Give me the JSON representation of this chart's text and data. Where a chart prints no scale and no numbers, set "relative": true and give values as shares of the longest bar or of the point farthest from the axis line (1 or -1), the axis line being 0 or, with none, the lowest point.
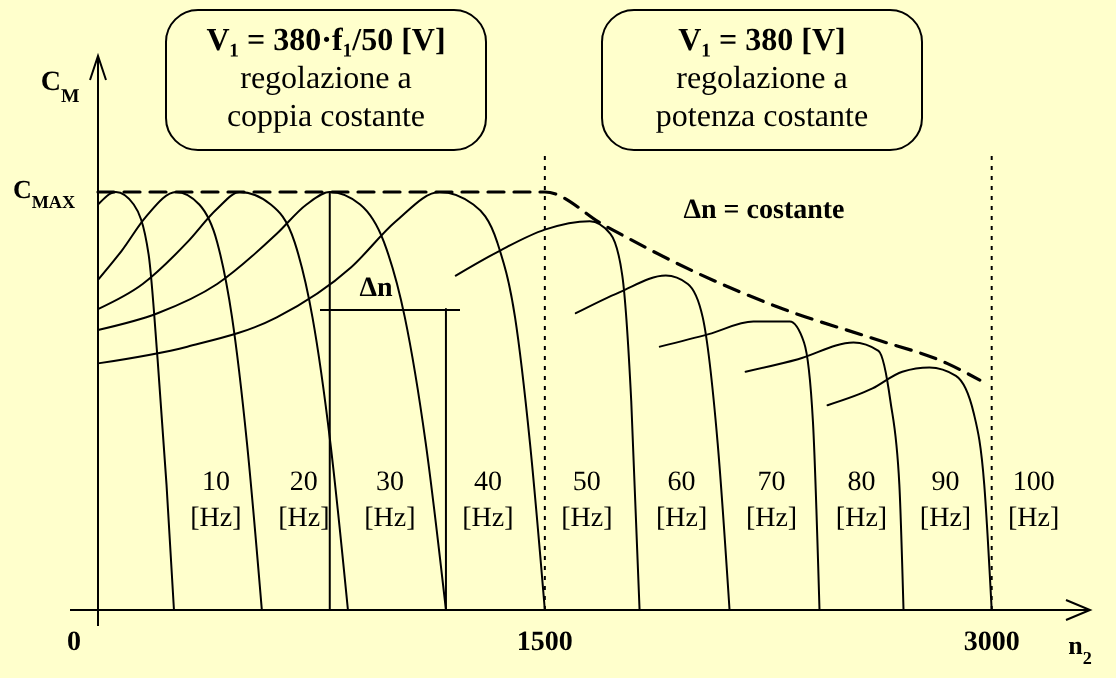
{
  "chart_data": {
    "type": "line",
    "relative": true,
    "xlabel": "n$_{2}$",
    "ylabel": "C$_{M}$",
    "xlim": [
      0,
      3330
    ],
    "xticks": [
      0,
      1500,
      3000
    ],
    "series": [
      {
        "name": "10 [Hz]",
        "color": "#000000",
        "x": [
          0,
          60,
          120,
          170,
          200,
          230,
          255
        ],
        "values": [
          0.97,
          1,
          0.97,
          0.85,
          0.6,
          0.3,
          0
        ]
      },
      {
        "name": "20 [Hz]",
        "color": "#000000",
        "x": [
          0,
          80,
          160,
          262,
          340,
          400,
          450,
          500,
          550
        ],
        "values": [
          0.79,
          0.86,
          0.94,
          1,
          0.97,
          0.88,
          0.7,
          0.4,
          0
        ]
      },
      {
        "name": "30 [Hz]",
        "color": "#000000",
        "x": [
          0,
          150,
          300,
          400,
          476,
          580,
          660,
          720,
          780,
          839
        ],
        "values": [
          0.72,
          0.78,
          0.88,
          0.96,
          1,
          0.97,
          0.88,
          0.7,
          0.4,
          0
        ]
      },
      {
        "name": "40 [Hz]",
        "color": "#000000",
        "x": [
          0,
          200,
          400,
          600,
          700,
          778,
          880,
          960,
          1030,
          1100,
          1168
        ],
        "values": [
          0.67,
          0.71,
          0.78,
          0.9,
          0.97,
          1,
          0.97,
          0.88,
          0.7,
          0.4,
          0
        ]
      },
      {
        "name": "50 [Hz]",
        "color": "#000000",
        "x": [
          0,
          300,
          600,
          850,
          1000,
          1147,
          1260,
          1340,
          1400,
          1450,
          1500
        ],
        "values": [
          0.59,
          0.63,
          0.7,
          0.82,
          0.93,
          1,
          0.97,
          0.88,
          0.7,
          0.4,
          0
        ]
      },
      {
        "name": "60 [Hz]",
        "color": "#000000",
        "x": [
          1201,
          1350,
          1500,
          1651,
          1720,
          1760,
          1790,
          1818
        ],
        "values": [
          0.8,
          0.86,
          0.91,
          0.93,
          0.9,
          0.8,
          0.5,
          0
        ]
      },
      {
        "name": "70 [Hz]",
        "color": "#000000",
        "x": [
          1604,
          1750,
          1906,
          1980,
          2030,
          2080,
          2120
        ],
        "values": [
          0.71,
          0.76,
          0.8,
          0.78,
          0.7,
          0.4,
          0
        ]
      },
      {
        "name": "80 [Hz]",
        "color": "#000000",
        "x": [
          1886,
          2050,
          2200,
          2322,
          2370,
          2400,
          2422
        ],
        "values": [
          0.63,
          0.66,
          0.69,
          0.69,
          0.64,
          0.45,
          0
        ]
      },
      {
        "name": "90 [Hz]",
        "color": "#000000",
        "x": [
          2174,
          2350,
          2536,
          2620,
          2660,
          2690,
          2704
        ],
        "values": [
          0.57,
          0.6,
          0.64,
          0.62,
          0.5,
          0.3,
          0
        ]
      },
      {
        "name": "100 [Hz]",
        "color": "#000000",
        "x": [
          2449,
          2600,
          2700,
          2791,
          2880,
          2940,
          2975,
          3000
        ],
        "values": [
          0.49,
          0.53,
          0.57,
          0.58,
          0.56,
          0.47,
          0.3,
          0
        ]
      },
      {
        "color": "#000000",
        "x": [
          778,
          778
        ],
        "values": [
          1,
          0
        ]
      },
      {
        "color": "#000000",
        "x": [
          1168,
          1168
        ],
        "values": [
          0.72,
          0
        ]
      },
      {
        "color": "#000000",
        "line_style": "dashed",
        "x": [
          0,
          1500,
          1700,
          2000,
          2300,
          2600,
          2850,
          2960
        ],
        "values": [
          1,
          1,
          0.92,
          0.81,
          0.72,
          0.65,
          0.59,
          0.55
        ]
      }
    ],
    "ref_lines": [
      {
        "axis": "x",
        "value": 1500,
        "line_style": "dotted",
        "color": "#000000"
      },
      {
        "axis": "x",
        "value": 3000,
        "line_style": "dotted",
        "color": "#000000"
      }
    ],
    "annotations": [
      "V₁ = 380·f₁/50 [V]\nregolazione a\ncoppia costante",
      "V₁ = 380 [V]\nregolazione a\npotenza costante",
      "Δn = costante",
      "Δn",
      {
        "text": "C$_{MAX}$",
        "x": 0,
        "y": 1
      }
    ]
  }
}
